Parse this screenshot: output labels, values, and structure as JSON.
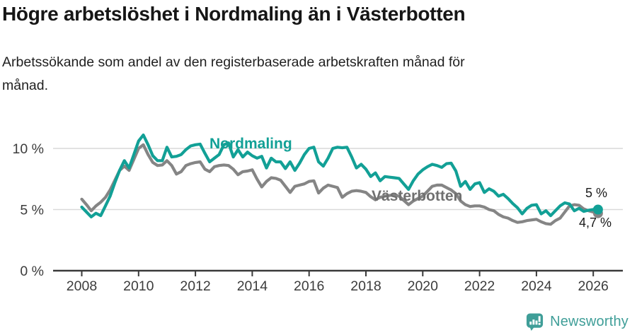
{
  "header": {
    "title": "Högre arbetslöshet i Nordmaling än i Västerbotten",
    "subtitle_lines": [
      "Arbetssökande som andel av den registerbaserade arbetskraften månad för",
      "månad."
    ]
  },
  "footer": {
    "brand": "Newsworthy",
    "logo_icon": "bar-chart-speech-bubble",
    "brand_color": "#3f9e98"
  },
  "chart_data": {
    "type": "line",
    "title": "Högre arbetslöshet i Nordmaling än i Västerbotten",
    "subtitle": "Arbetssökande som andel av den registerbaserade arbetskraften månad för månad.",
    "unit": "%",
    "x_start_year": 2008,
    "x_interval_months": 2,
    "xlim": [
      2007,
      2027
    ],
    "ylim": [
      0,
      11.5
    ],
    "grid": "horizontal",
    "legend_position": "inline-labels",
    "xticks": [
      2008,
      2010,
      2012,
      2014,
      2016,
      2018,
      2020,
      2022,
      2024,
      2026
    ],
    "yticks": [
      {
        "value": 0,
        "label": "0 %"
      },
      {
        "value": 5,
        "label": "5 %"
      },
      {
        "value": 10,
        "label": "10 %"
      }
    ],
    "colors": {
      "grid": "#d9d9d9",
      "axis": "#3a3a3a"
    },
    "end_labels": {
      "nordmaling": "5 %",
      "vasterbotten": "4,7 %"
    },
    "series": [
      {
        "id": "nordmaling",
        "name": "Nordmaling",
        "color": "#12a096",
        "end_value": 5.0,
        "values": [
          5.2,
          4.8,
          4.4,
          4.7,
          4.5,
          5.3,
          6.1,
          7.2,
          8.2,
          9.0,
          8.4,
          9.5,
          10.6,
          11.1,
          10.3,
          9.4,
          9.0,
          9.0,
          10.1,
          9.3,
          9.35,
          9.5,
          9.9,
          10.2,
          10.3,
          10.35,
          9.6,
          8.9,
          9.2,
          9.5,
          10.3,
          10.45,
          9.3,
          9.9,
          9.3,
          9.7,
          9.4,
          9.2,
          9.35,
          8.4,
          9.2,
          8.9,
          8.9,
          8.35,
          8.9,
          8.2,
          8.8,
          9.5,
          10.0,
          10.1,
          8.9,
          8.55,
          9.2,
          10.0,
          10.1,
          10.05,
          10.1,
          9.3,
          8.4,
          8.7,
          8.3,
          7.7,
          8.0,
          7.35,
          7.7,
          7.65,
          7.6,
          7.55,
          7.1,
          6.65,
          7.35,
          7.9,
          8.25,
          8.5,
          8.7,
          8.6,
          8.45,
          8.75,
          8.8,
          8.15,
          6.9,
          7.3,
          6.65,
          7.1,
          7.2,
          6.4,
          6.7,
          6.5,
          6.1,
          6.25,
          5.9,
          5.5,
          5.15,
          4.65,
          5.1,
          5.35,
          5.4,
          4.65,
          4.9,
          4.5,
          4.9,
          5.3,
          5.55,
          5.45,
          4.9,
          5.1,
          4.85,
          4.95,
          5.0,
          5.0
        ]
      },
      {
        "id": "vasterbotten",
        "name": "Västerbotten",
        "color": "#858585",
        "end_value": 4.7,
        "values": [
          5.85,
          5.4,
          4.9,
          5.3,
          5.6,
          6.0,
          6.6,
          7.4,
          8.2,
          8.55,
          8.2,
          9.1,
          10.0,
          10.3,
          9.5,
          8.85,
          8.6,
          8.65,
          9.0,
          8.6,
          7.9,
          8.1,
          8.6,
          8.75,
          8.85,
          8.9,
          8.3,
          8.1,
          8.5,
          8.6,
          8.65,
          8.6,
          8.3,
          7.85,
          8.1,
          8.15,
          8.25,
          7.5,
          6.85,
          7.3,
          7.6,
          7.55,
          7.4,
          6.9,
          6.4,
          6.9,
          7.0,
          7.1,
          7.3,
          7.35,
          6.35,
          6.75,
          7.0,
          6.9,
          6.8,
          6.0,
          6.3,
          6.5,
          6.55,
          6.5,
          6.4,
          6.05,
          5.8,
          6.0,
          6.1,
          6.15,
          6.2,
          6.1,
          5.75,
          5.4,
          5.7,
          5.9,
          6.1,
          6.5,
          6.9,
          7.0,
          7.0,
          6.8,
          6.6,
          6.3,
          5.7,
          5.4,
          5.25,
          5.3,
          5.3,
          5.2,
          5.0,
          4.9,
          4.6,
          4.4,
          4.3,
          4.1,
          3.95,
          4.0,
          4.1,
          4.15,
          4.2,
          4.0,
          3.85,
          3.8,
          4.1,
          4.3,
          4.8,
          5.3,
          5.4,
          5.35,
          5.05,
          4.9,
          4.8,
          4.7
        ]
      }
    ]
  }
}
